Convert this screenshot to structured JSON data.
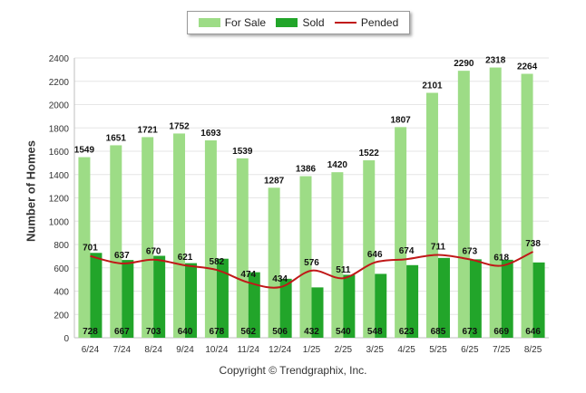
{
  "chart_data": {
    "type": "bar",
    "categories": [
      "6/24",
      "7/24",
      "8/24",
      "9/24",
      "10/24",
      "11/24",
      "12/24",
      "1/25",
      "2/25",
      "3/25",
      "4/25",
      "5/25",
      "6/25",
      "7/25",
      "8/25"
    ],
    "series": [
      {
        "name": "For Sale",
        "kind": "bar",
        "color": "#9ddc86",
        "values": [
          1549,
          1651,
          1721,
          1752,
          1693,
          1539,
          1287,
          1386,
          1420,
          1522,
          1807,
          2101,
          2290,
          2318,
          2264
        ]
      },
      {
        "name": "Sold",
        "kind": "bar",
        "color": "#22a52a",
        "values": [
          728,
          667,
          703,
          640,
          678,
          562,
          506,
          432,
          540,
          548,
          623,
          685,
          673,
          669,
          646
        ]
      },
      {
        "name": "Pended",
        "kind": "line",
        "color": "#c01818",
        "values": [
          701,
          637,
          670,
          621,
          582,
          474,
          434,
          576,
          511,
          646,
          674,
          711,
          673,
          618,
          738
        ]
      }
    ],
    "ylabel": "Number of Homes",
    "xlabel": "",
    "ylim": [
      0,
      2400
    ],
    "yticks": [
      0,
      200,
      400,
      600,
      800,
      1000,
      1200,
      1400,
      1600,
      1800,
      2000,
      2200,
      2400
    ],
    "grid": true,
    "legend": "top-center"
  },
  "legend": [
    {
      "label": "For Sale",
      "color": "#9ddc86",
      "kind": "bar"
    },
    {
      "label": "Sold",
      "color": "#22a52a",
      "kind": "bar"
    },
    {
      "label": "Pended",
      "color": "#c01818",
      "kind": "line"
    }
  ],
  "footer": {
    "copyright": "Copyright © Trendgraphix, Inc."
  }
}
